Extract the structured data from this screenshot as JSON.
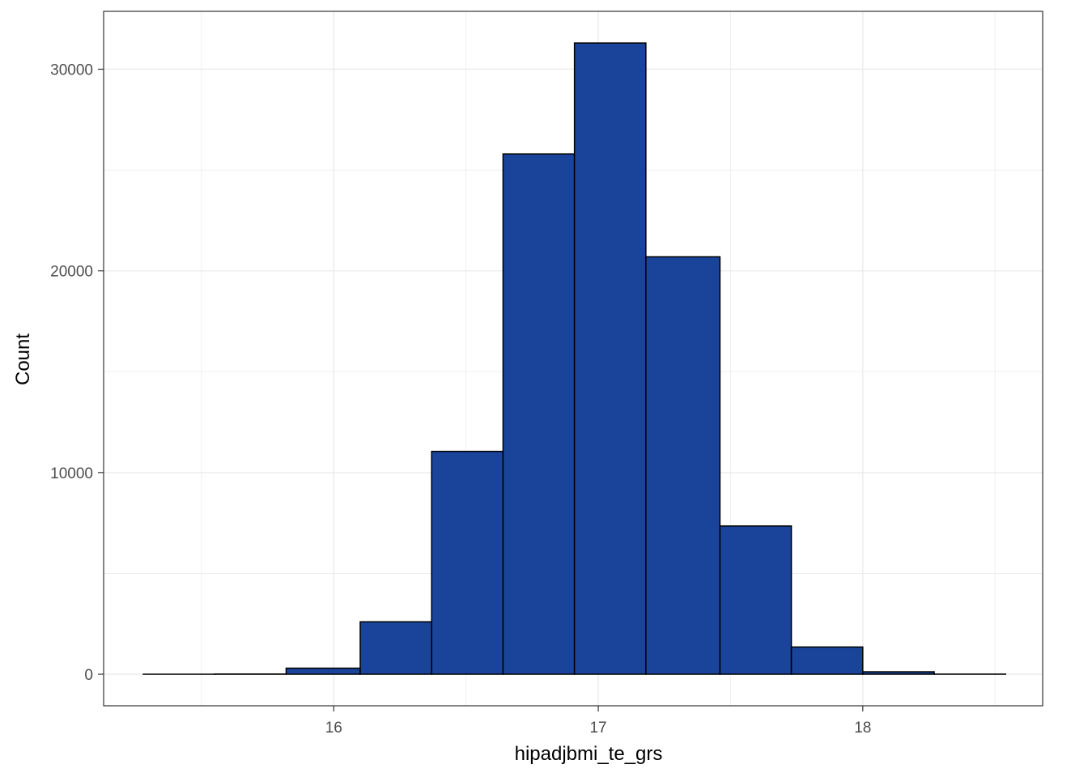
{
  "chart_data": {
    "type": "bar",
    "subtype": "histogram",
    "title": "",
    "xlabel": "hipadjbmi_te_grs",
    "ylabel": "Count",
    "bins": [
      {
        "x_start": 15.28,
        "x_end": 15.55,
        "count": 0
      },
      {
        "x_start": 15.55,
        "x_end": 15.82,
        "count": 10
      },
      {
        "x_start": 15.82,
        "x_end": 16.1,
        "count": 300
      },
      {
        "x_start": 16.1,
        "x_end": 16.37,
        "count": 2600
      },
      {
        "x_start": 16.37,
        "x_end": 16.64,
        "count": 11050
      },
      {
        "x_start": 16.64,
        "x_end": 16.91,
        "count": 25800
      },
      {
        "x_start": 16.91,
        "x_end": 17.18,
        "count": 31300
      },
      {
        "x_start": 17.18,
        "x_end": 17.46,
        "count": 20700
      },
      {
        "x_start": 17.46,
        "x_end": 17.73,
        "count": 7350
      },
      {
        "x_start": 17.73,
        "x_end": 18.0,
        "count": 1350
      },
      {
        "x_start": 18.0,
        "x_end": 18.27,
        "count": 120
      },
      {
        "x_start": 18.27,
        "x_end": 18.54,
        "count": 5
      }
    ],
    "xlim": [
      15.13,
      18.68
    ],
    "ylim": [
      -1565,
      32870
    ],
    "x_ticks": [
      16,
      17,
      18
    ],
    "x_tick_labels": [
      "16",
      "17",
      "18"
    ],
    "y_ticks": [
      0,
      10000,
      20000,
      30000
    ],
    "y_tick_labels": [
      "0",
      "10000",
      "20000",
      "30000"
    ],
    "x_minor_ticks": [
      15.5,
      16.5,
      17.5,
      18.5
    ],
    "y_minor_ticks": [
      5000,
      15000,
      25000
    ],
    "grid": true,
    "legend": "none",
    "colors": {
      "bar_fill": "#1a4499",
      "bar_outline": "#000000",
      "grid": "#ebebeb",
      "panel_border": "#333333",
      "tick_label": "#4d4d4d",
      "axis_title": "#000000"
    }
  }
}
